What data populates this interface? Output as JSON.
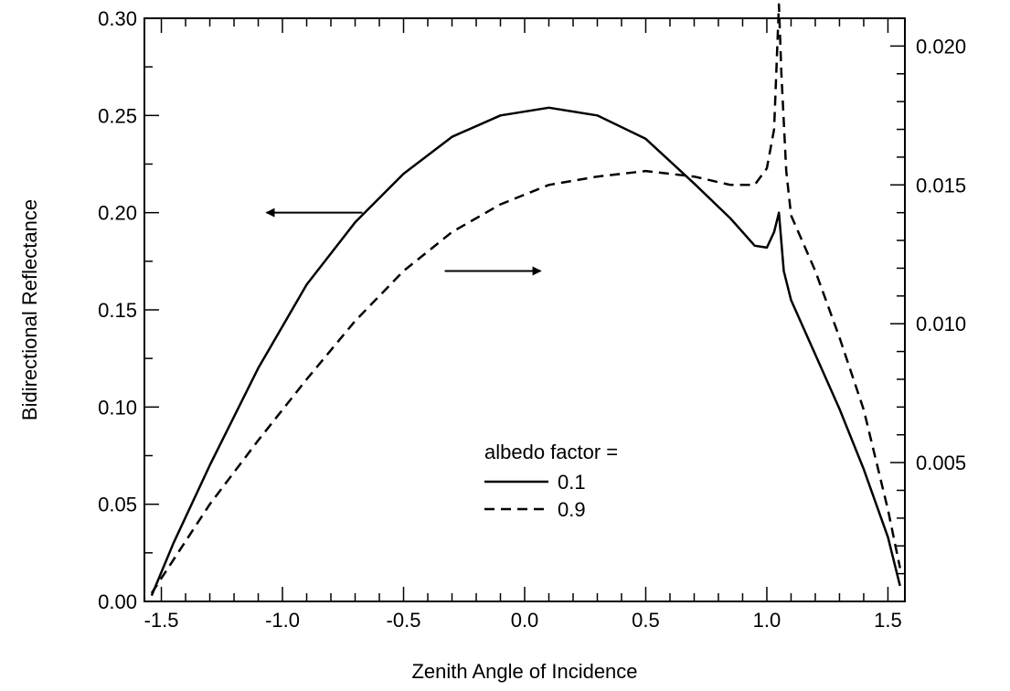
{
  "chart_data": {
    "type": "line",
    "xlabel": "Zenith Angle of Incidence",
    "ylabel": "Bidirectional Reflectance",
    "xlim": [
      -1.57,
      1.57
    ],
    "ylim": [
      0.0,
      0.3
    ],
    "y2lim": [
      0.0,
      0.021
    ],
    "x_ticks": [
      "-1.5",
      "-1.0",
      "-0.5",
      "0.0",
      "0.5",
      "1.0",
      "1.5"
    ],
    "y_ticks": [
      "0.00",
      "0.05",
      "0.10",
      "0.15",
      "0.20",
      "0.25",
      "0.30"
    ],
    "y2_ticks": [
      "0.005",
      "0.010",
      "0.015",
      "0.020"
    ],
    "grid": false,
    "legend": {
      "title": "albedo factor =",
      "placement": "lower-center",
      "entries": [
        "0.1",
        "0.9"
      ]
    },
    "series": [
      {
        "name": "0.1",
        "axis": "left",
        "style": "solid",
        "x": [
          -1.54,
          -1.45,
          -1.3,
          -1.1,
          -0.9,
          -0.7,
          -0.5,
          -0.3,
          -0.1,
          0.1,
          0.3,
          0.5,
          0.7,
          0.85,
          0.95,
          1.0,
          1.03,
          1.05,
          1.07,
          1.1,
          1.2,
          1.3,
          1.4,
          1.5,
          1.55
        ],
        "values": [
          0.003,
          0.03,
          0.07,
          0.12,
          0.163,
          0.195,
          0.22,
          0.239,
          0.25,
          0.254,
          0.25,
          0.238,
          0.215,
          0.197,
          0.183,
          0.182,
          0.19,
          0.2,
          0.17,
          0.155,
          0.127,
          0.099,
          0.068,
          0.033,
          0.008
        ]
      },
      {
        "name": "0.9",
        "axis": "right",
        "style": "dashed",
        "x": [
          -1.54,
          -1.45,
          -1.3,
          -1.1,
          -0.9,
          -0.7,
          -0.5,
          -0.3,
          -0.1,
          0.1,
          0.3,
          0.5,
          0.7,
          0.85,
          0.95,
          1.0,
          1.03,
          1.05,
          1.06,
          1.08,
          1.1,
          1.2,
          1.3,
          1.4,
          1.5,
          1.55
        ],
        "values": [
          0.0003,
          0.0015,
          0.0035,
          0.0058,
          0.008,
          0.0101,
          0.0119,
          0.0133,
          0.0143,
          0.015,
          0.0153,
          0.0155,
          0.0153,
          0.015,
          0.015,
          0.0156,
          0.017,
          0.0215,
          0.019,
          0.0155,
          0.0139,
          0.0119,
          0.0095,
          0.0069,
          0.0033,
          0.0012
        ]
      }
    ],
    "annotations": [
      {
        "type": "arrow",
        "points_to": "left-axis",
        "at_x": -0.67,
        "at_y": 0.2
      },
      {
        "type": "arrow",
        "points_to": "right-axis",
        "at_x": -0.33,
        "at_y": 0.17
      }
    ]
  }
}
